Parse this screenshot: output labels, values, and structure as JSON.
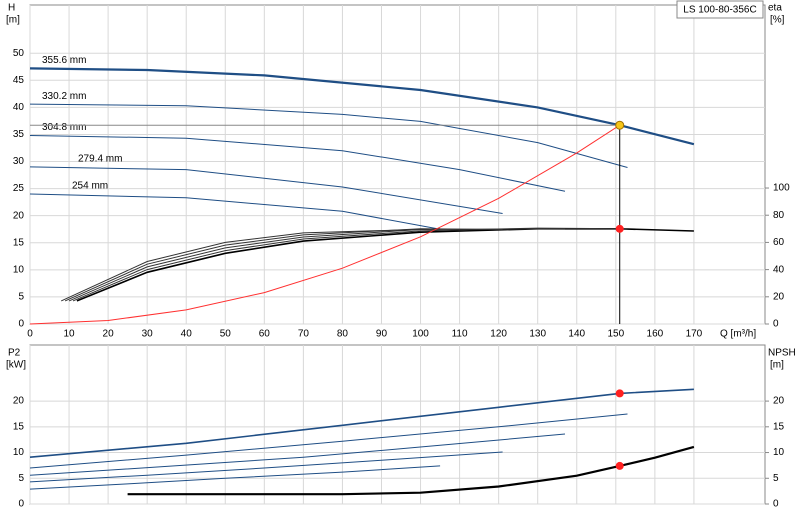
{
  "chart_data": [
    {
      "type": "line",
      "title": "LS 100-80-356C",
      "y_label": [
        "H",
        "[m]"
      ],
      "y2_label": [
        "eta",
        "[%]"
      ],
      "x_label": "Q [m³/h]",
      "xlim": [
        0,
        188.2
      ],
      "ylim": [
        0,
        58.9
      ],
      "y2lim": [
        0,
        234.6
      ],
      "xticks": [
        0,
        10,
        20,
        30,
        40,
        50,
        60,
        70,
        80,
        90,
        100,
        110,
        120,
        130,
        140,
        150,
        160,
        170
      ],
      "yticks": [
        0,
        5,
        10,
        15,
        20,
        25,
        30,
        35,
        40,
        45,
        50
      ],
      "y2ticks": [
        0,
        20,
        40,
        60,
        80,
        100
      ],
      "grid": true,
      "series": [
        {
          "name": "355.6 mm",
          "color": "#1f4e85",
          "line_width": 2.2,
          "x": [
            0,
            30,
            60,
            100,
            130,
            151,
            170
          ],
          "values": [
            47.2,
            46.9,
            45.9,
            43.2,
            40,
            36.7,
            33.2
          ]
        },
        {
          "name": "330.2 mm",
          "color": "#1f4e85",
          "x": [
            0,
            40,
            80,
            100,
            130,
            153
          ],
          "values": [
            40.6,
            40.3,
            38.7,
            37.4,
            33.5,
            28.9
          ]
        },
        {
          "name": "304.8 mm",
          "color": "#1f4e85",
          "x": [
            0,
            40,
            80,
            110,
            137
          ],
          "values": [
            34.8,
            34.3,
            32,
            28.5,
            24.5
          ]
        },
        {
          "name": "279.4 mm",
          "color": "#1f4e85",
          "x": [
            0,
            40,
            80,
            121
          ],
          "values": [
            29,
            28.5,
            25.3,
            20.4
          ]
        },
        {
          "name": "254 mm",
          "color": "#1f4e85",
          "x": [
            0,
            40,
            80,
            105
          ],
          "values": [
            24,
            23.3,
            20.8,
            17.5
          ]
        },
        {
          "axis": "y2",
          "color": "#000000",
          "line_width": 1.6,
          "x": [
            12,
            30,
            50,
            70,
            100,
            130,
            151,
            170
          ],
          "values": [
            17,
            38,
            52,
            61,
            67.5,
            70,
            70,
            68.4
          ]
        },
        {
          "axis": "y2",
          "color": "#333333",
          "x": [
            11,
            30,
            50,
            70,
            100,
            130,
            153
          ],
          "values": [
            17,
            40,
            54,
            62.5,
            68.5,
            70.5,
            70
          ]
        },
        {
          "axis": "y2",
          "color": "#333333",
          "x": [
            10,
            30,
            50,
            70,
            100,
            137
          ],
          "values": [
            17,
            42,
            56,
            64,
            69.5,
            70
          ]
        },
        {
          "axis": "y2",
          "color": "#333333",
          "x": [
            9,
            30,
            50,
            70,
            100,
            121
          ],
          "values": [
            17,
            44,
            58,
            65.5,
            70,
            69.5
          ]
        },
        {
          "axis": "y2",
          "color": "#333333",
          "x": [
            8,
            30,
            50,
            70,
            105
          ],
          "values": [
            17,
            46,
            60,
            67,
            70
          ]
        },
        {
          "color": "#ff3030",
          "x": [
            0,
            20,
            40,
            60,
            80,
            100,
            120,
            140,
            151
          ],
          "values": [
            0,
            0.64,
            2.6,
            5.8,
            10.3,
            16.1,
            23.2,
            31.6,
            36.7
          ]
        },
        {
          "color": "#f5c518",
          "marker": true,
          "guides": true,
          "x": [
            151
          ],
          "values": [
            36.7
          ]
        },
        {
          "color": "#ff2020",
          "marker": true,
          "axis": "y2",
          "x": [
            151
          ],
          "values": [
            70
          ]
        }
      ]
    },
    {
      "type": "line",
      "y_label": [
        "P2",
        "[kW]"
      ],
      "y2_label": [
        "NPSH",
        "[m]"
      ],
      "xlim": [
        0,
        188.2
      ],
      "ylim": [
        0,
        30.9
      ],
      "y2lim": [
        0,
        30.9
      ],
      "yticks": [
        0,
        5,
        10,
        15,
        20
      ],
      "y2ticks": [
        0,
        5,
        10,
        15,
        20
      ],
      "grid": true,
      "series": [
        {
          "color": "#1f4e85",
          "line_width": 1.6,
          "x": [
            0,
            40,
            80,
            120,
            151,
            170
          ],
          "values": [
            9.1,
            11.8,
            15.3,
            18.8,
            21.5,
            22.3
          ]
        },
        {
          "color": "#1f4e85",
          "x": [
            0,
            40,
            80,
            120,
            153
          ],
          "values": [
            7,
            9.5,
            12.2,
            15,
            17.5
          ]
        },
        {
          "color": "#1f4e85",
          "x": [
            0,
            35,
            70,
            105,
            137
          ],
          "values": [
            5.6,
            7.3,
            9.1,
            11.4,
            13.6
          ]
        },
        {
          "color": "#1f4e85",
          "x": [
            0,
            30,
            60,
            90,
            121
          ],
          "values": [
            4.3,
            5.6,
            7,
            8.5,
            10.1
          ]
        },
        {
          "color": "#1f4e85",
          "x": [
            0,
            25,
            50,
            80,
            105
          ],
          "values": [
            2.9,
            3.9,
            5,
            6.2,
            7.4
          ]
        },
        {
          "color": "#000000",
          "line_width": 2.2,
          "axis": "y2",
          "x": [
            25,
            60,
            80,
            100,
            120,
            140,
            151,
            160,
            170
          ],
          "values": [
            1.9,
            1.9,
            1.9,
            2.2,
            3.4,
            5.5,
            7.4,
            9,
            11.1
          ]
        },
        {
          "color": "#ff2020",
          "marker": true,
          "x": [
            151
          ],
          "values": [
            21.5
          ]
        },
        {
          "color": "#ff2020",
          "marker": true,
          "axis": "y2",
          "x": [
            151
          ],
          "values": [
            7.4
          ]
        }
      ]
    }
  ]
}
